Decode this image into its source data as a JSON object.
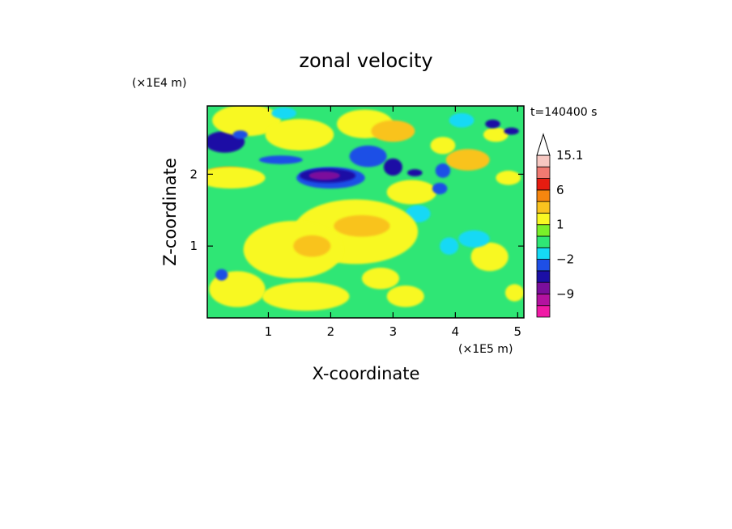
{
  "chart_data": {
    "type": "heatmap",
    "title": "zonal velocity",
    "xlabel": "X-coordinate",
    "ylabel": "Z-coordinate",
    "x_unit": "(×1E5 m)",
    "y_unit": "(×1E4 m)",
    "time_label": "t=140400 s",
    "xlim": [
      0.02,
      5.1
    ],
    "ylim": [
      0.0,
      2.95
    ],
    "x_ticks": [
      1,
      2,
      3,
      4,
      5
    ],
    "x_tick_labels": [
      "1",
      "2",
      "3",
      "4",
      "5"
    ],
    "y_ticks": [
      1,
      2
    ],
    "y_tick_labels": [
      "1",
      "2"
    ],
    "colorbar": {
      "levels": [
        -15,
        -12,
        -9,
        -6,
        -3,
        -2,
        -1,
        0,
        1,
        2,
        3,
        6,
        9,
        12,
        15.1
      ],
      "labels": [
        {
          "level": 15.1,
          "text": "15.1"
        },
        {
          "level": 6,
          "text": "6"
        },
        {
          "level": 1,
          "text": "1"
        },
        {
          "level": -2,
          "text": "−2"
        },
        {
          "level": -9,
          "text": "−9"
        }
      ],
      "bands": [
        {
          "from": -15,
          "to": -12,
          "color": "#f01aa6"
        },
        {
          "from": -12,
          "to": -9,
          "color": "#b412a0"
        },
        {
          "from": -9,
          "to": -6,
          "color": "#7b0e9c"
        },
        {
          "from": -6,
          "to": -3,
          "color": "#1b0fa5"
        },
        {
          "from": -3,
          "to": -2,
          "color": "#1e4fe6"
        },
        {
          "from": -2,
          "to": -1,
          "color": "#15d9f5"
        },
        {
          "from": -1,
          "to": 0,
          "color": "#2fe675"
        },
        {
          "from": 0,
          "to": 1,
          "color": "#7af02a"
        },
        {
          "from": 1,
          "to": 2,
          "color": "#f8f823"
        },
        {
          "from": 2,
          "to": 3,
          "color": "#f9c31f"
        },
        {
          "from": 3,
          "to": 6,
          "color": "#f6860f"
        },
        {
          "from": 6,
          "to": 9,
          "color": "#e61c10"
        },
        {
          "from": 9,
          "to": 12,
          "color": "#f07a72"
        },
        {
          "from": 12,
          "to": 15.1,
          "color": "#f7c8c2"
        }
      ],
      "extend_max_color": "#ffffff"
    },
    "background_color": "#2fe675",
    "features": [
      {
        "x": 0.3,
        "z": 2.45,
        "w": 0.32,
        "h": 0.15,
        "value": -5
      },
      {
        "x": 0.35,
        "z": 2.0,
        "w": 0.38,
        "h": 0.1,
        "value": 4
      },
      {
        "x": 0.65,
        "z": 2.75,
        "w": 0.55,
        "h": 0.22,
        "value": 1.5
      },
      {
        "x": 0.4,
        "z": 1.95,
        "w": 0.55,
        "h": 0.15,
        "value": 1.5
      },
      {
        "x": 0.55,
        "z": 2.55,
        "w": 0.12,
        "h": 0.06,
        "value": -2.5
      },
      {
        "x": 1.6,
        "z": 2.55,
        "w": 0.3,
        "h": 0.12,
        "value": 4
      },
      {
        "x": 1.5,
        "z": 2.55,
        "w": 0.55,
        "h": 0.22,
        "value": 1.5
      },
      {
        "x": 1.2,
        "z": 2.2,
        "w": 0.35,
        "h": 0.06,
        "value": -2.5
      },
      {
        "x": 1.25,
        "z": 2.85,
        "w": 0.2,
        "h": 0.08,
        "value": -1.5
      },
      {
        "x": 2.0,
        "z": 1.95,
        "w": 0.55,
        "h": 0.15,
        "value": -2.5
      },
      {
        "x": 1.95,
        "z": 1.98,
        "w": 0.45,
        "h": 0.1,
        "value": -5
      },
      {
        "x": 1.9,
        "z": 1.98,
        "w": 0.25,
        "h": 0.06,
        "value": -7.5
      },
      {
        "x": 2.6,
        "z": 2.25,
        "w": 0.3,
        "h": 0.15,
        "value": -2.5
      },
      {
        "x": 3.0,
        "z": 2.1,
        "w": 0.15,
        "h": 0.12,
        "value": -5
      },
      {
        "x": 3.35,
        "z": 2.02,
        "w": 0.12,
        "h": 0.05,
        "value": -5
      },
      {
        "x": 2.55,
        "z": 2.7,
        "w": 0.45,
        "h": 0.2,
        "value": 1.5
      },
      {
        "x": 3.0,
        "z": 2.6,
        "w": 0.35,
        "h": 0.15,
        "value": 2.5
      },
      {
        "x": 3.3,
        "z": 1.75,
        "w": 0.25,
        "h": 0.1,
        "value": 4
      },
      {
        "x": 3.3,
        "z": 1.75,
        "w": 0.4,
        "h": 0.17,
        "value": 1.5
      },
      {
        "x": 3.8,
        "z": 2.05,
        "w": 0.12,
        "h": 0.1,
        "value": -2.5
      },
      {
        "x": 3.75,
        "z": 1.8,
        "w": 0.12,
        "h": 0.08,
        "value": -2.5
      },
      {
        "x": 3.8,
        "z": 2.4,
        "w": 0.2,
        "h": 0.12,
        "value": 1.5
      },
      {
        "x": 4.2,
        "z": 2.2,
        "w": 0.35,
        "h": 0.15,
        "value": 2.5
      },
      {
        "x": 4.65,
        "z": 2.55,
        "w": 0.2,
        "h": 0.1,
        "value": 1.5
      },
      {
        "x": 4.6,
        "z": 2.7,
        "w": 0.12,
        "h": 0.06,
        "value": -5
      },
      {
        "x": 4.9,
        "z": 2.6,
        "w": 0.12,
        "h": 0.05,
        "value": -5
      },
      {
        "x": 4.85,
        "z": 1.95,
        "w": 0.2,
        "h": 0.1,
        "value": 1.5
      },
      {
        "x": 4.1,
        "z": 2.75,
        "w": 0.2,
        "h": 0.1,
        "value": -1.5
      },
      {
        "x": 3.4,
        "z": 1.45,
        "w": 0.2,
        "h": 0.12,
        "value": -1.5
      },
      {
        "x": 2.4,
        "z": 1.2,
        "w": 1.0,
        "h": 0.45,
        "value": 1.5
      },
      {
        "x": 2.5,
        "z": 1.28,
        "w": 0.45,
        "h": 0.15,
        "value": 2.5
      },
      {
        "x": 1.4,
        "z": 0.95,
        "w": 0.8,
        "h": 0.4,
        "value": 1.5
      },
      {
        "x": 1.7,
        "z": 1.0,
        "w": 0.3,
        "h": 0.15,
        "value": 2.5
      },
      {
        "x": 0.5,
        "z": 0.4,
        "w": 0.45,
        "h": 0.25,
        "value": 1.5
      },
      {
        "x": 0.25,
        "z": 0.6,
        "w": 0.1,
        "h": 0.08,
        "value": -2.5
      },
      {
        "x": 1.6,
        "z": 0.3,
        "w": 0.7,
        "h": 0.2,
        "value": 1.5
      },
      {
        "x": 3.2,
        "z": 0.3,
        "w": 0.3,
        "h": 0.15,
        "value": 1.5
      },
      {
        "x": 4.55,
        "z": 0.85,
        "w": 0.3,
        "h": 0.2,
        "value": 1.5
      },
      {
        "x": 4.3,
        "z": 1.1,
        "w": 0.25,
        "h": 0.12,
        "value": -1.5
      },
      {
        "x": 3.9,
        "z": 1.0,
        "w": 0.15,
        "h": 0.12,
        "value": -1.5
      },
      {
        "x": 4.95,
        "z": 0.35,
        "w": 0.15,
        "h": 0.12,
        "value": 1.5
      },
      {
        "x": 2.8,
        "z": 0.55,
        "w": 0.3,
        "h": 0.15,
        "value": 1.5
      }
    ]
  }
}
